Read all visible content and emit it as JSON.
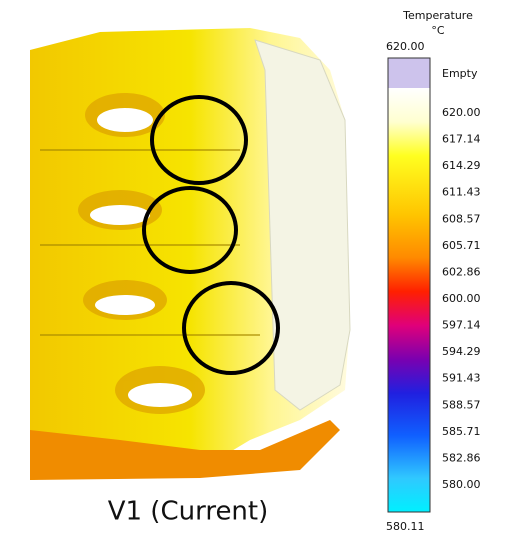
{
  "legend": {
    "title": "Temperature",
    "unit": "°C",
    "max_label": "620.00",
    "empty_label": "Empty",
    "labels": [
      "620.00",
      "617.14",
      "614.29",
      "611.43",
      "608.57",
      "605.71",
      "602.86",
      "600.00",
      "597.14",
      "594.29",
      "591.43",
      "588.57",
      "585.71",
      "582.86",
      "580.00"
    ],
    "min_label": "580.11"
  },
  "caption": "V1 (Current)"
}
